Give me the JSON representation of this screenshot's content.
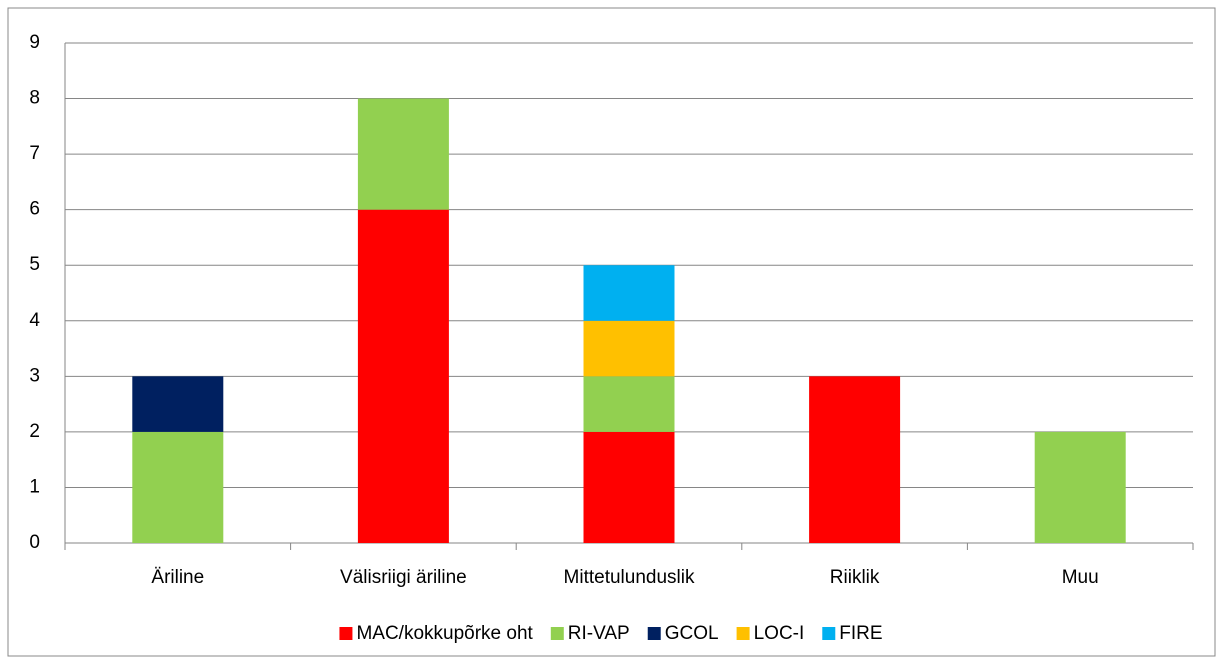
{
  "chart_data": {
    "type": "stacked_bar",
    "categories": [
      "Äriline",
      "Välisriigi äriline",
      "Mittetulunduslik",
      "Riiklik",
      "Muu"
    ],
    "series": [
      {
        "name": "MAC/kokkupõrke oht",
        "color": "#ff0000",
        "values": [
          0,
          6,
          2,
          3,
          0
        ]
      },
      {
        "name": "RI-VAP",
        "color": "#92d050",
        "values": [
          2,
          2,
          1,
          0,
          2
        ]
      },
      {
        "name": "GCOL",
        "color": "#002060",
        "values": [
          1,
          0,
          0,
          0,
          0
        ]
      },
      {
        "name": "LOC-I",
        "color": "#ffc000",
        "values": [
          0,
          0,
          1,
          0,
          0
        ]
      },
      {
        "name": "FIRE",
        "color": "#00b0f0",
        "values": [
          0,
          0,
          1,
          0,
          0
        ]
      }
    ],
    "ylim": [
      0,
      9
    ],
    "yticks": [
      0,
      1,
      2,
      3,
      4,
      5,
      6,
      7,
      8,
      9
    ],
    "grid": true,
    "legend": "bottom"
  }
}
